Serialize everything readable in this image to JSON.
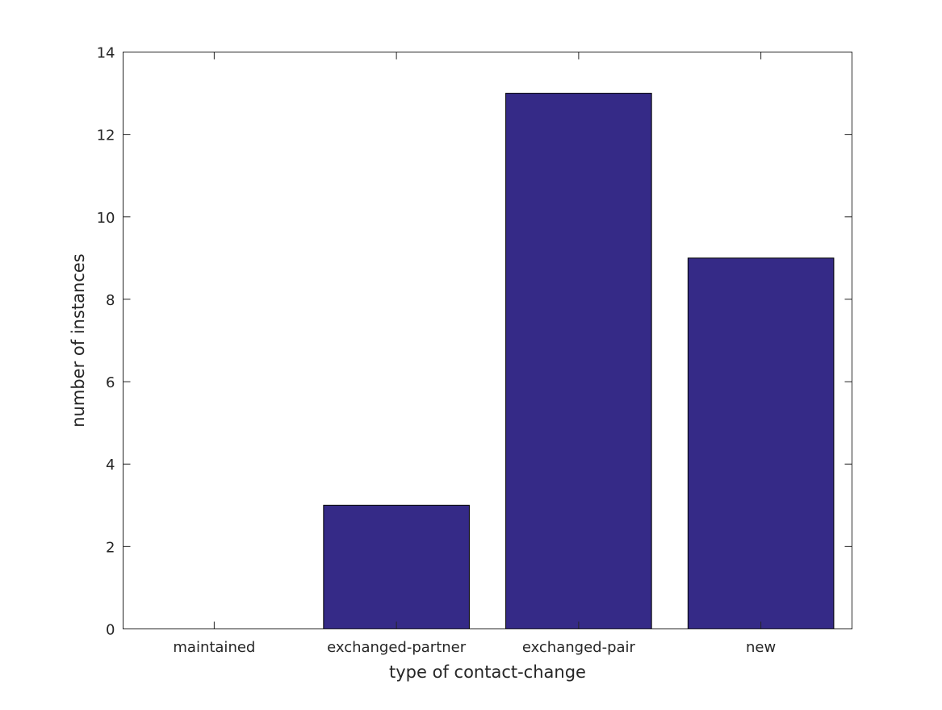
{
  "chart_data": {
    "type": "bar",
    "title": "",
    "xlabel": "type of contact-change",
    "ylabel": "number of instances",
    "categories": [
      "maintained",
      "exchanged-partner",
      "exchanged-pair",
      "new"
    ],
    "values": [
      0,
      3,
      13,
      9
    ],
    "ylim": [
      0,
      14
    ],
    "yticks": [
      0,
      2,
      4,
      6,
      8,
      10,
      12,
      14
    ],
    "grid": false,
    "legend": "none",
    "bar_color": "#352a87",
    "axis_color": "#262626"
  }
}
